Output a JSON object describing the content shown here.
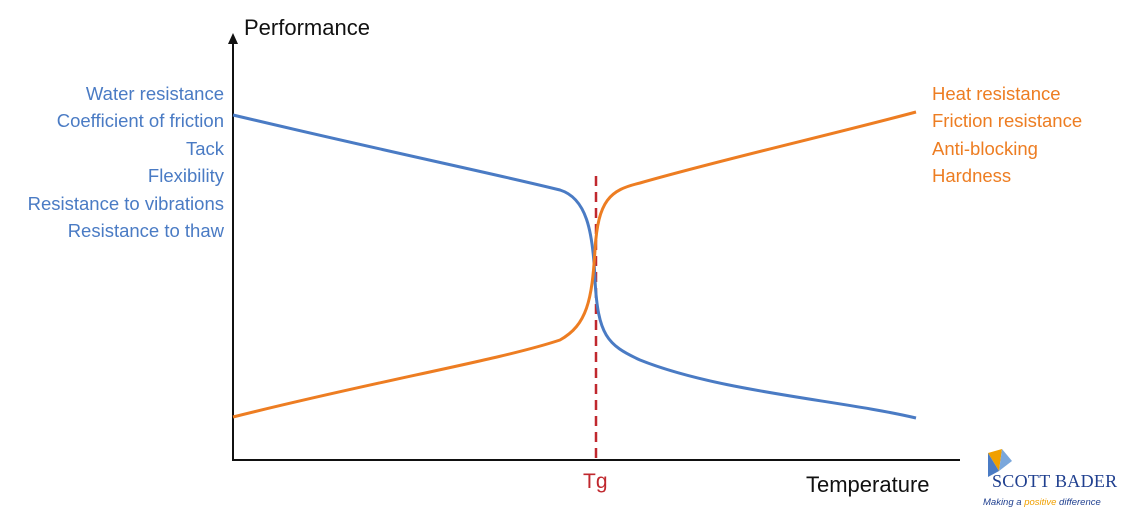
{
  "diagram": {
    "y_axis_title": "Performance",
    "x_axis_title": "Temperature",
    "transition_marker": "Tg",
    "left_properties": [
      "Water resistance",
      "Coefficient of friction",
      "Tack",
      "Flexibility",
      "Resistance to vibrations",
      "Resistance to thaw"
    ],
    "right_properties": [
      "Heat resistance",
      "Friction resistance",
      "Anti-blocking",
      "Hardness"
    ]
  },
  "colors": {
    "blue_curve": "#4a7bc4",
    "orange_curve": "#ed7d22",
    "tg_line": "#c0282e",
    "axis": "#111111",
    "logo_blue": "#1f3f8f",
    "logo_yellow": "#f0a000"
  },
  "logo": {
    "name": "SCOTT BADER",
    "tagline_pre": "Making a ",
    "tagline_highlight": "positive",
    "tagline_post": " difference"
  }
}
